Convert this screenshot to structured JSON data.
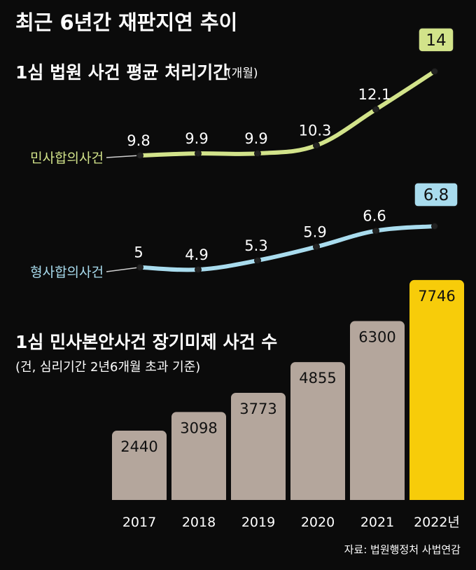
{
  "title": "최근 6년간 재판지연 추이",
  "source": "자료: 법원행정처 사법연감",
  "colors": {
    "background": "#0b0b0b",
    "civil": "#d2e38a",
    "criminal": "#a9dcee",
    "bar": "#b4a69c",
    "bar_highlight": "#f7cc0a"
  },
  "chart_data": [
    {
      "type": "line",
      "title": "1심 법원 사건 평균 처리기간",
      "unit": "(개월)",
      "x": [
        "2017",
        "2018",
        "2019",
        "2020",
        "2021",
        "2022년"
      ],
      "series": [
        {
          "name": "민사합의사건",
          "values": [
            9.8,
            9.9,
            9.9,
            10.3,
            12.1,
            14
          ]
        },
        {
          "name": "형사합의사건",
          "values": [
            5,
            4.9,
            5.3,
            5.9,
            6.6,
            6.8
          ]
        }
      ]
    },
    {
      "type": "bar",
      "title": "1심 민사본안사건 장기미제 사건 수",
      "subtitle": "(건, 심리기간 2년6개월 초과 기준)",
      "categories": [
        "2017",
        "2018",
        "2019",
        "2020",
        "2021",
        "2022년"
      ],
      "values": [
        2440,
        3098,
        3773,
        4855,
        6300,
        7746
      ],
      "highlight_last": true
    }
  ]
}
